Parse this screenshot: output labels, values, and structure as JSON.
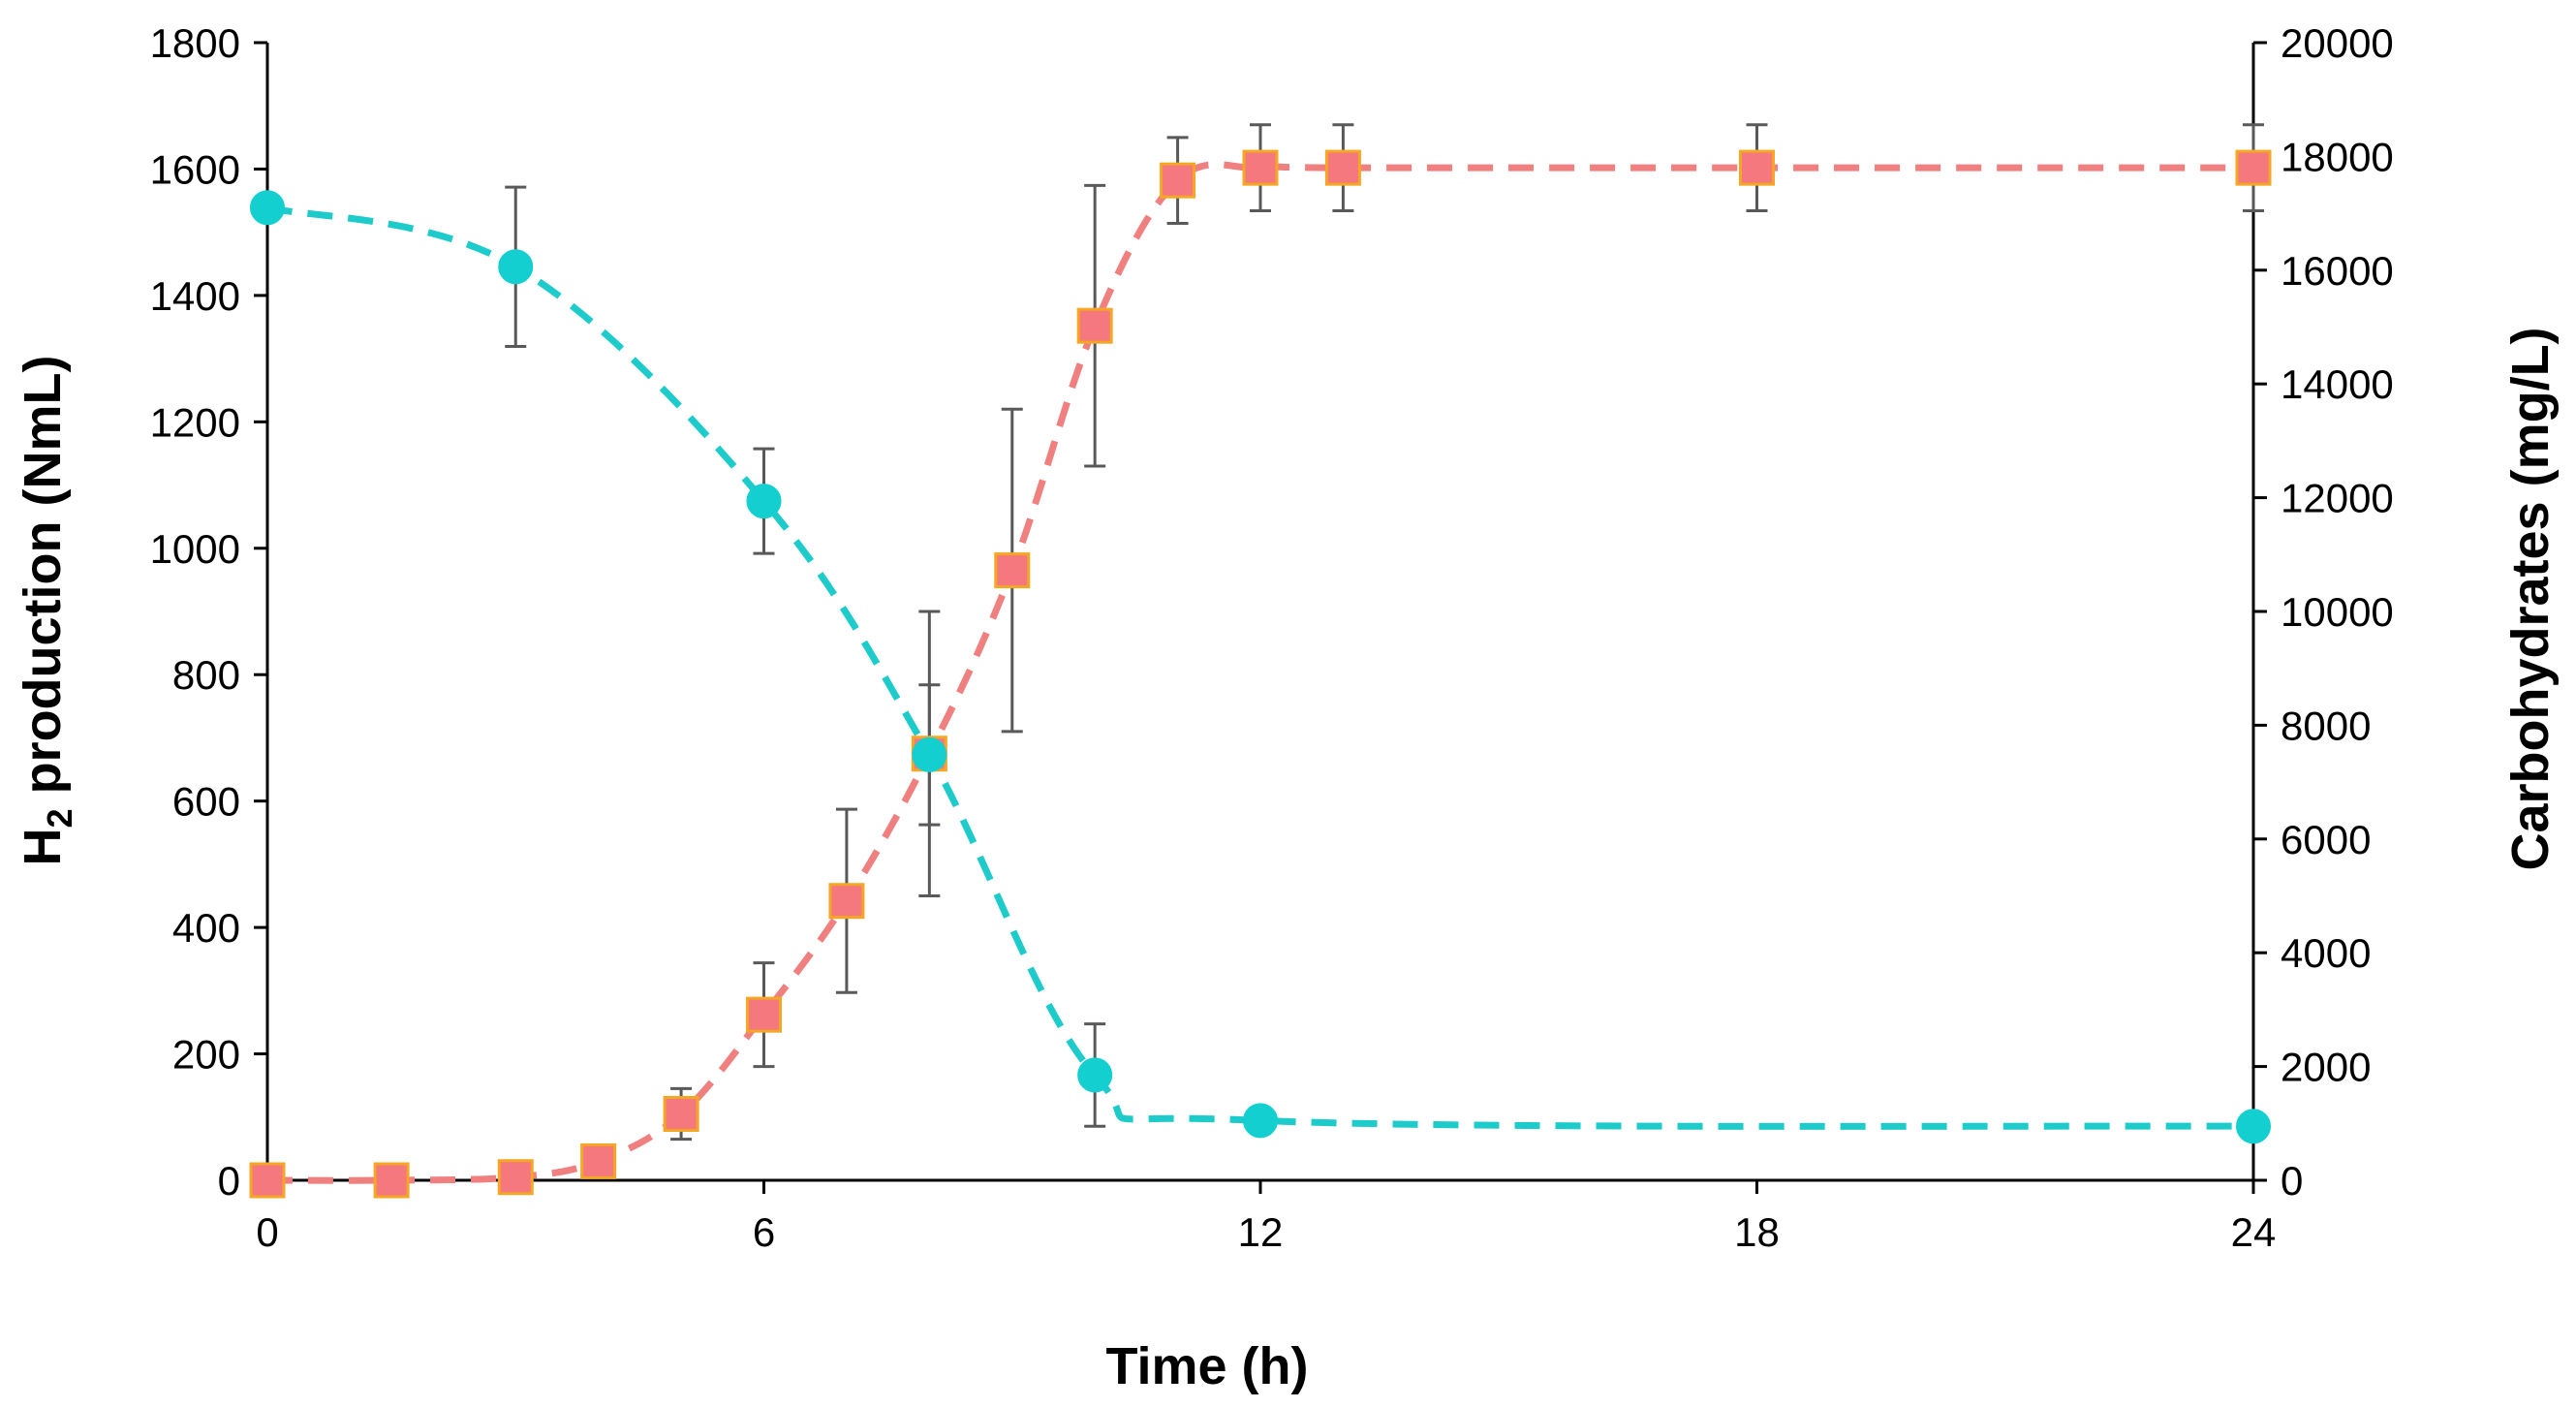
{
  "chart_data": {
    "type": "line",
    "title": "",
    "xlabel": "Time (h)",
    "ylabel": {
      "prefix": "H",
      "subscript": "2",
      "suffix": " production (NmL)"
    },
    "y2label": "Carbohydrates (mg/L)",
    "xlim": [
      0,
      24
    ],
    "ylim": [
      0,
      1800
    ],
    "y2lim": [
      0,
      20000
    ],
    "xticks": [
      0,
      6,
      12,
      18,
      24
    ],
    "yticks": [
      0,
      200,
      400,
      600,
      800,
      1000,
      1200,
      1400,
      1600,
      1800
    ],
    "y2ticks": [
      0,
      2000,
      4000,
      6000,
      8000,
      10000,
      12000,
      14000,
      16000,
      18000,
      20000
    ],
    "grid": false,
    "legend": "none",
    "series": [
      {
        "name": "H2 production",
        "axis": "left",
        "marker": "square",
        "line_color": "#F08080",
        "marker_fill": "#F4787E",
        "marker_edge": "#F5A623",
        "x": [
          0,
          1.5,
          3,
          4,
          5,
          6,
          7,
          8,
          9,
          10,
          11,
          12,
          13,
          18,
          24
        ],
        "y": [
          0,
          0,
          5,
          30,
          105,
          262,
          442,
          675,
          965,
          1352,
          1582,
          1602,
          1602,
          1602,
          1602
        ],
        "err": [
          0,
          0,
          0,
          0,
          40,
          82,
          145,
          225,
          255,
          222,
          68,
          68,
          68,
          68,
          68
        ]
      },
      {
        "name": "Carbohydrates",
        "axis": "right",
        "marker": "circle",
        "line_color": "#1ECBCB",
        "marker_fill": "#14CFCF",
        "marker_edge": "#14CFCF",
        "x": [
          0,
          3,
          6,
          8,
          10,
          12,
          24
        ],
        "y": [
          17100,
          16060,
          11940,
          7480,
          1850,
          1050,
          950
        ],
        "err": [
          0,
          1400,
          920,
          1230,
          900,
          0,
          0
        ]
      }
    ]
  }
}
